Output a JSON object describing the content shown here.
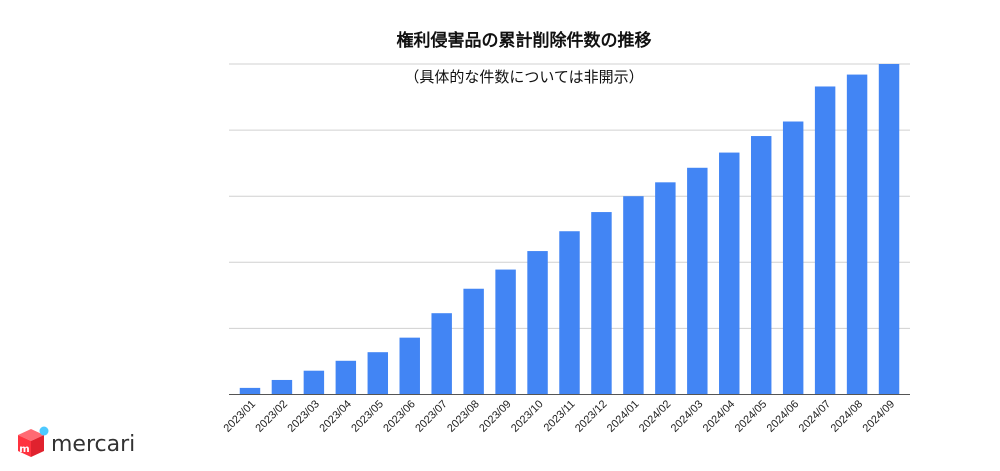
{
  "chart_data": {
    "type": "bar",
    "title": "権利侵害品の累計削除件数の推移",
    "subtitle": "（具体的な件数については非開示）",
    "categories": [
      "2023/01",
      "2023/02",
      "2023/03",
      "2023/04",
      "2023/05",
      "2023/06",
      "2023/07",
      "2023/08",
      "2023/09",
      "2023/10",
      "2023/11",
      "2023/12",
      "2024/01",
      "2024/02",
      "2024/03",
      "2024/04",
      "2024/05",
      "2024/06",
      "2024/07",
      "2024/08",
      "2024/09"
    ],
    "values": [
      0.1,
      0.22,
      0.36,
      0.51,
      0.64,
      0.86,
      1.23,
      1.6,
      1.89,
      2.17,
      2.47,
      2.76,
      3.0,
      3.21,
      3.43,
      3.66,
      3.91,
      4.13,
      4.66,
      4.84,
      5.0
    ],
    "ylim": [
      0,
      5
    ],
    "grid": true,
    "y_tick_labels_shown": false,
    "color": "#4285f4"
  },
  "logo": {
    "text": "mercari",
    "mark_glyph": "m",
    "colors": {
      "box": "#ff333f",
      "accent": "#4dc9ff"
    }
  }
}
